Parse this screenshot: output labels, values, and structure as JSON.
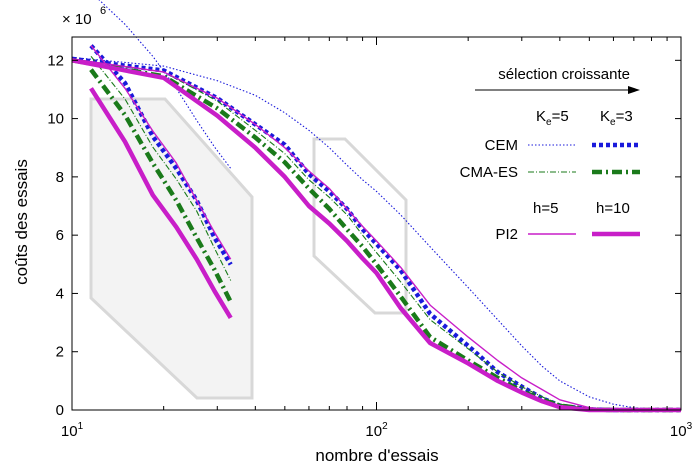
{
  "chart_data": {
    "type": "line",
    "xlabel": "nombre d'essais",
    "ylabel": "coûts des essais",
    "y_multiplier": "× 10",
    "y_multiplier_exp": "6",
    "x_scale": "log",
    "xlim": [
      10,
      1000
    ],
    "ylim": [
      0,
      12.8
    ],
    "x_ticks": [
      {
        "base": "10",
        "exp": "1",
        "value": 10
      },
      {
        "base": "10",
        "exp": "2",
        "value": 100
      },
      {
        "base": "10",
        "exp": "3",
        "value": 1000
      }
    ],
    "y_ticks": [
      "0",
      "2",
      "4",
      "6",
      "8",
      "10",
      "12"
    ],
    "grid": false,
    "arrow_label": "sélection croissante",
    "legend": {
      "placement": "top-right",
      "group1_headers": [
        {
          "label": "K",
          "sub": "e",
          "eq": "=5"
        },
        {
          "label": "K",
          "sub": "e",
          "eq": "=3"
        }
      ],
      "group2_headers": [
        "h=5",
        "h=10"
      ],
      "rows": [
        "CEM",
        "CMA-ES",
        "PI2"
      ]
    },
    "colors": {
      "CEM": "#1a1adb",
      "CMA-ES": "#1a7a1a",
      "PI2": "#c81ec8",
      "inset": "#d8d8d8"
    },
    "series": [
      {
        "name": "K=5",
        "method": "CEM",
        "style": "dotted-thin",
        "x": [
          10,
          20,
          30,
          40,
          50,
          60,
          70,
          80,
          90,
          100,
          120,
          150,
          200,
          250,
          300,
          350,
          400,
          500,
          600,
          700,
          800,
          900,
          1000
        ],
        "y": [
          12.1,
          11.8,
          11.3,
          10.8,
          10.2,
          9.6,
          9.0,
          8.4,
          7.9,
          7.5,
          6.7,
          5.6,
          4.2,
          3.1,
          2.2,
          1.5,
          1.0,
          0.45,
          0.2,
          0.08,
          0.03,
          0.01,
          0.0
        ]
      },
      {
        "name": "K=3",
        "method": "CEM",
        "style": "dotted-thick",
        "x": [
          10,
          20,
          30,
          40,
          50,
          60,
          70,
          80,
          90,
          100,
          120,
          150,
          200,
          250,
          300,
          350,
          400,
          500,
          600,
          700,
          800,
          1000
        ],
        "y": [
          12.05,
          11.65,
          10.7,
          9.8,
          9.1,
          8.1,
          7.5,
          6.9,
          6.2,
          5.7,
          4.8,
          3.3,
          2.2,
          1.3,
          0.8,
          0.4,
          0.15,
          0.02,
          0.0,
          0.0,
          0.0,
          0.0
        ]
      },
      {
        "name": "K=5",
        "method": "CMA-ES",
        "style": "dashdot-thin",
        "x": [
          10,
          20,
          30,
          40,
          50,
          60,
          70,
          80,
          90,
          100,
          120,
          150,
          200,
          250,
          300,
          350,
          400,
          500,
          600,
          700,
          800,
          1000
        ],
        "y": [
          12.05,
          11.6,
          10.6,
          9.6,
          8.8,
          7.9,
          7.3,
          6.7,
          6.0,
          5.4,
          4.4,
          3.1,
          2.1,
          1.3,
          0.8,
          0.45,
          0.2,
          0.05,
          0.0,
          0.0,
          0.0,
          0.0
        ]
      },
      {
        "name": "K=3",
        "method": "CMA-ES",
        "style": "dashdot-thick",
        "x": [
          10,
          20,
          30,
          40,
          50,
          60,
          70,
          80,
          90,
          100,
          120,
          150,
          200,
          250,
          300,
          350,
          400,
          500,
          600,
          700,
          800,
          1000
        ],
        "y": [
          12.0,
          11.45,
          10.35,
          9.35,
          8.5,
          7.6,
          6.9,
          6.2,
          5.6,
          5.0,
          3.9,
          2.5,
          1.7,
          1.1,
          0.65,
          0.35,
          0.15,
          0.02,
          0.0,
          0.0,
          0.0,
          0.0
        ]
      },
      {
        "name": "h=5",
        "method": "PI2",
        "style": "solid-thin",
        "x": [
          10,
          20,
          30,
          40,
          50,
          60,
          70,
          80,
          90,
          100,
          120,
          150,
          200,
          250,
          300,
          350,
          400,
          500,
          600,
          700,
          800,
          1000
        ],
        "y": [
          12.05,
          11.6,
          10.7,
          9.8,
          9.0,
          8.2,
          7.6,
          6.9,
          6.3,
          5.8,
          4.9,
          3.6,
          2.5,
          1.7,
          1.1,
          0.7,
          0.35,
          0.08,
          0.0,
          0.0,
          0.0,
          0.0
        ]
      },
      {
        "name": "h=10",
        "method": "PI2",
        "style": "solid-thick",
        "x": [
          10,
          20,
          30,
          40,
          50,
          60,
          70,
          80,
          90,
          100,
          120,
          150,
          200,
          250,
          300,
          350,
          400,
          500,
          600,
          700,
          800,
          1000
        ],
        "y": [
          12.0,
          11.4,
          10.1,
          9.0,
          8.0,
          7.0,
          6.4,
          5.8,
          5.2,
          4.7,
          3.5,
          2.3,
          1.6,
          1.0,
          0.6,
          0.3,
          0.1,
          0.0,
          0.0,
          0.0,
          0.0,
          0.0
        ]
      }
    ]
  }
}
